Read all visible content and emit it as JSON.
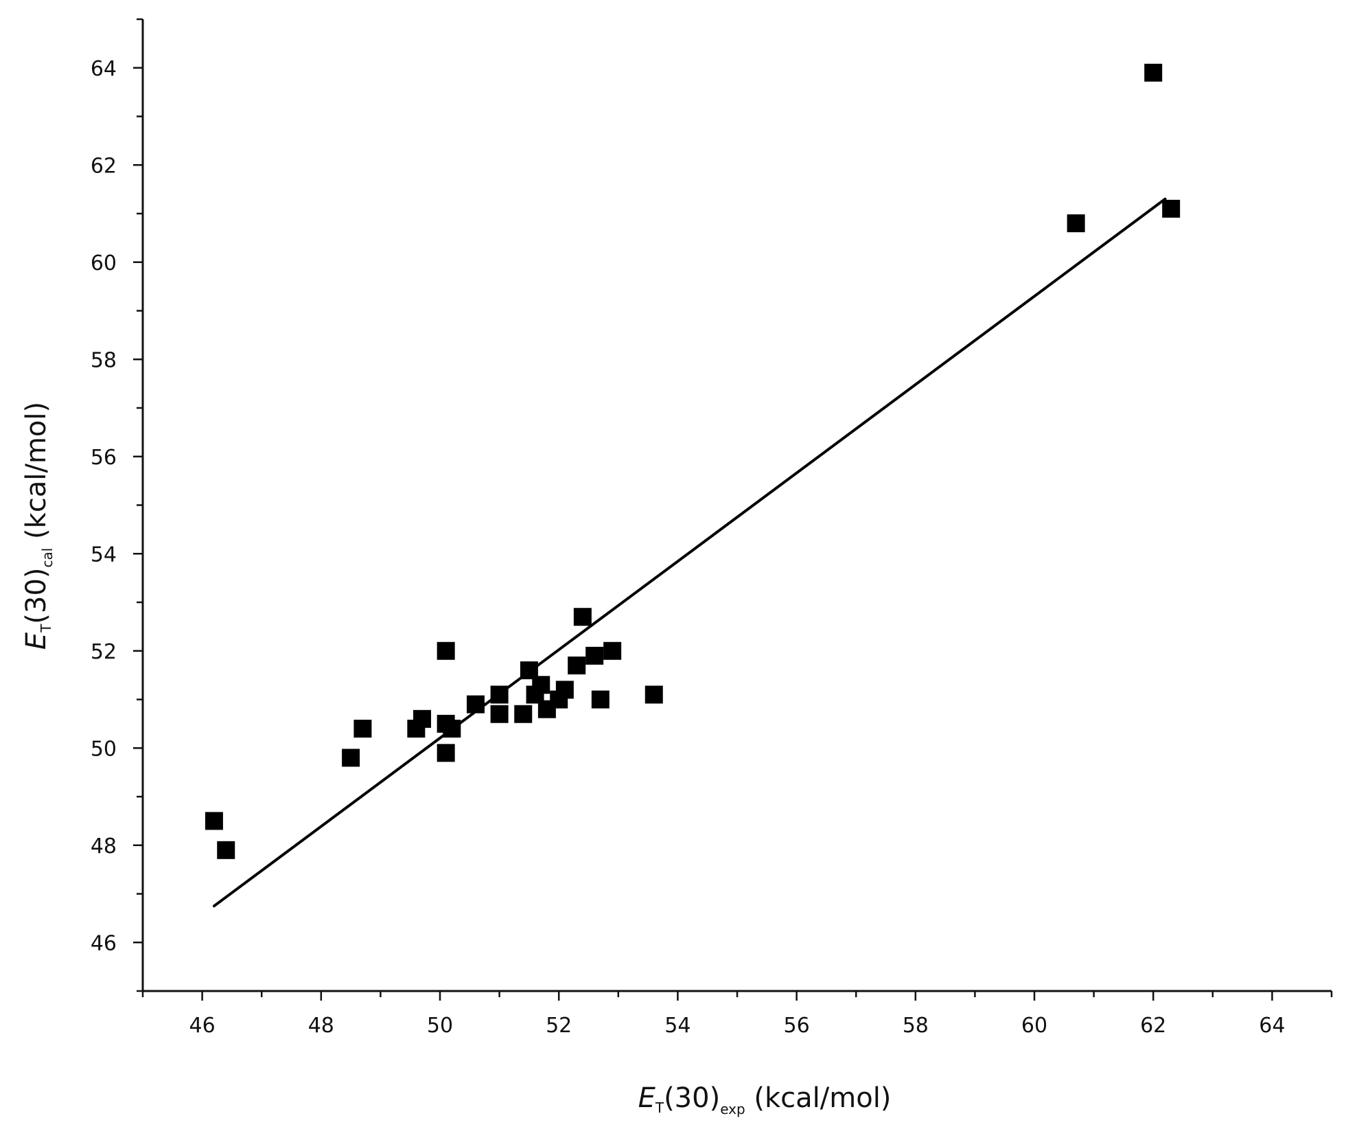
{
  "chart_data": {
    "type": "scatter",
    "title": "",
    "xlabel": {
      "symbol": "E",
      "symbol_sub": "T",
      "mid": "(30)",
      "sub": "exp",
      "unit": " (kcal/mol)"
    },
    "ylabel": {
      "symbol": "E",
      "symbol_sub": "T",
      "mid": "(30)",
      "sub": "cal",
      "unit": " (kcal/mol)"
    },
    "xlim": [
      45,
      65
    ],
    "ylim": [
      45,
      65
    ],
    "xticks": [
      46,
      48,
      50,
      52,
      54,
      56,
      58,
      60,
      62,
      64
    ],
    "yticks": [
      46,
      48,
      50,
      52,
      54,
      56,
      58,
      60,
      62,
      64
    ],
    "grid": false,
    "legend": "none",
    "marker": "square",
    "colors": {
      "marker": "#000000",
      "line": "#000000",
      "axis": "#111111"
    },
    "series": [
      {
        "points": [
          [
            46.2,
            48.5
          ],
          [
            46.4,
            47.9
          ],
          [
            48.5,
            49.8
          ],
          [
            48.7,
            50.4
          ],
          [
            49.6,
            50.4
          ],
          [
            49.7,
            50.6
          ],
          [
            50.1,
            52.0
          ],
          [
            50.1,
            50.5
          ],
          [
            50.1,
            49.9
          ],
          [
            50.2,
            50.4
          ],
          [
            50.6,
            50.9
          ],
          [
            51.0,
            51.1
          ],
          [
            51.0,
            50.7
          ],
          [
            51.4,
            50.7
          ],
          [
            51.5,
            51.6
          ],
          [
            51.6,
            51.1
          ],
          [
            51.7,
            51.3
          ],
          [
            51.8,
            50.8
          ],
          [
            52.0,
            51.0
          ],
          [
            52.1,
            51.2
          ],
          [
            52.3,
            51.7
          ],
          [
            52.4,
            52.7
          ],
          [
            52.6,
            51.9
          ],
          [
            52.7,
            51.0
          ],
          [
            52.9,
            52.0
          ],
          [
            53.6,
            51.1
          ],
          [
            60.7,
            60.8
          ],
          [
            62.0,
            63.9
          ],
          [
            62.3,
            61.1
          ]
        ]
      }
    ],
    "fit_line": {
      "x": [
        46.2,
        62.2
      ],
      "y": [
        46.75,
        61.3
      ]
    }
  }
}
